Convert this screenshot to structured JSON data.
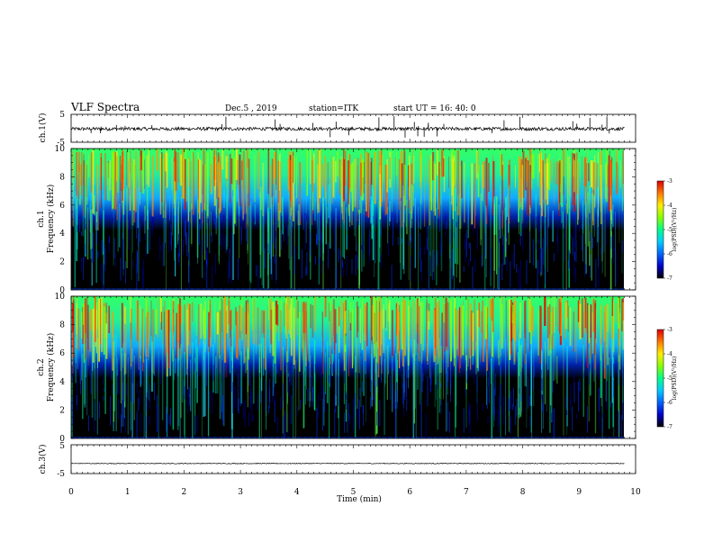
{
  "header": {
    "title": "VLF Spectra",
    "date": "Dec.5 , 2019",
    "station": "station=ITK",
    "start": "start UT = 16: 40: 0"
  },
  "colors": {
    "spectrogram_scale": [
      "#000000",
      "#0000cc",
      "#0066ff",
      "#00ccff",
      "#00ff88",
      "#88ff00",
      "#ffee00",
      "#ff7700",
      "#dd0000"
    ],
    "trace": "#000000",
    "background": "#ffffff"
  },
  "chart_data": [
    {
      "type": "line",
      "panel": "ch1-waveform",
      "ylabel": "ch.1(V)",
      "ylim": [
        -5,
        5
      ],
      "yticks": [
        "5",
        "-5"
      ],
      "x": [
        0,
        1,
        2,
        3,
        4,
        5,
        6,
        7,
        8,
        9,
        9.8
      ],
      "y": [
        -0.2,
        -0.2,
        -0.2,
        -0.2,
        -0.2,
        -0.2,
        -0.2,
        -0.2,
        -0.2,
        -0.2,
        -0.2
      ]
    },
    {
      "type": "heatmap",
      "panel": "ch1-spectrogram",
      "ylabel_top": "ch.1",
      "ylabel": "Frequency (kHz)",
      "xlim": [
        0,
        10
      ],
      "ylim": [
        0,
        10
      ],
      "yticks": [
        "0",
        "2",
        "4",
        "6",
        "8",
        "10"
      ],
      "data_extent_x": [
        0,
        9.8
      ],
      "colorbar": {
        "label": "log(PSD)(V²/Hz)",
        "range": [
          -7,
          -3
        ],
        "ticks": [
          "-3",
          "-4",
          "-5",
          "-6",
          "-7"
        ]
      }
    },
    {
      "type": "heatmap",
      "panel": "ch2-spectrogram",
      "ylabel_top": "ch.2",
      "ylabel": "Frequency (kHz)",
      "xlim": [
        0,
        10
      ],
      "ylim": [
        0,
        10
      ],
      "yticks": [
        "0",
        "2",
        "4",
        "6",
        "8",
        "10"
      ],
      "data_extent_x": [
        0,
        9.8
      ],
      "colorbar": {
        "label": "log(PSD)(V²/Hz)",
        "range": [
          -7,
          -3
        ],
        "ticks": [
          "-3",
          "-4",
          "-5",
          "-6",
          "-7"
        ]
      }
    },
    {
      "type": "line",
      "panel": "ch3-waveform",
      "ylabel": "ch.3(V)",
      "ylim": [
        -5,
        5
      ],
      "yticks": [
        "5",
        "-5"
      ],
      "x": [
        0,
        1,
        2,
        3,
        4,
        5,
        6,
        7,
        8,
        9,
        9.8
      ],
      "y": [
        -1.5,
        -1.5,
        -1.5,
        -1.5,
        -1.5,
        -1.5,
        -1.5,
        -1.5,
        -1.5,
        -1.5,
        -1.5
      ]
    }
  ],
  "x_axis": {
    "label": "Time (min)",
    "ticks": [
      "0",
      "1",
      "2",
      "3",
      "4",
      "5",
      "6",
      "7",
      "8",
      "9",
      "10"
    ],
    "range": [
      0,
      10
    ]
  }
}
